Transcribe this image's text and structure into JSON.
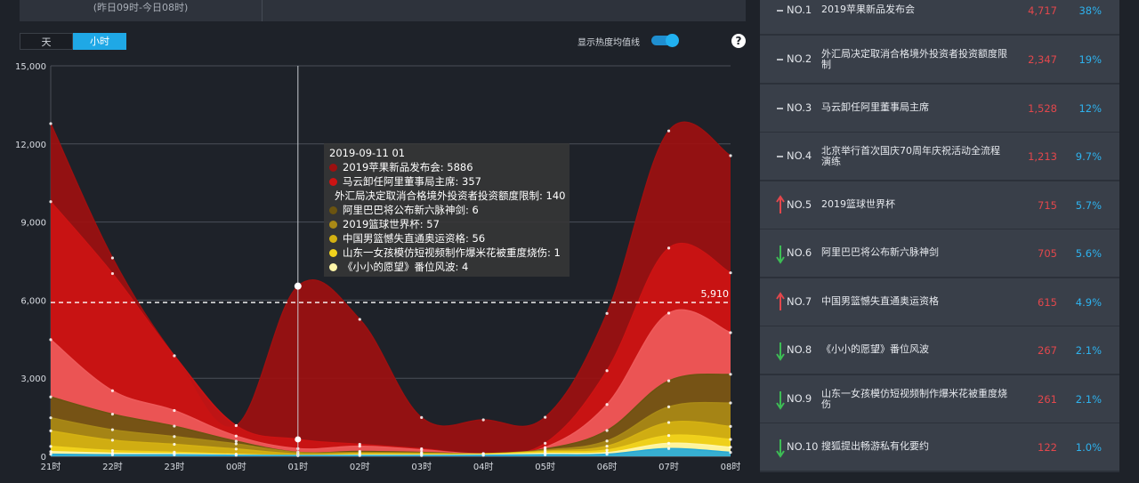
{
  "top_tab": {
    "sub_label": "(昨日09时-今日08时)"
  },
  "toggle": {
    "day_label": "天",
    "hour_label": "小时"
  },
  "heat_line": {
    "label": "显示热度均值线",
    "enabled": true
  },
  "help_icon": "?",
  "chart_data": {
    "type": "area",
    "x": [
      "21时",
      "22时",
      "23时",
      "00时",
      "01时",
      "02时",
      "03时",
      "04时",
      "05时",
      "06时",
      "07时",
      "08时"
    ],
    "yticks": [
      "0",
      "3,000",
      "6,000",
      "9,000",
      "12,000",
      "15,000"
    ],
    "ylim": [
      0,
      15000
    ],
    "grid": true,
    "stacked": true,
    "average_line": {
      "value": 5910,
      "label": "5,910"
    },
    "hover_x": "01时",
    "series": [
      {
        "name": "2019苹果新品发布会",
        "color": "#9d1010",
        "values": [
          3000,
          600,
          0,
          0,
          5886,
          4800,
          1200,
          1300,
          1000,
          2200,
          4500,
          4500
        ]
      },
      {
        "name": "马云卸任阿里董事局主席",
        "color": "#cc1313",
        "values": [
          5300,
          4500,
          2100,
          400,
          357,
          70,
          40,
          0,
          160,
          1300,
          2500,
          2300
        ]
      },
      {
        "name": "外汇局决定取消合格境外投资者投资额度限制",
        "color": "#ee5a5a",
        "values": [
          2200,
          900,
          600,
          200,
          140,
          200,
          100,
          0,
          60,
          1000,
          2600,
          1600
        ]
      },
      {
        "name": "阿里巴巴将公布新六脉神剑",
        "color": "#6b5410",
        "values": [
          800,
          600,
          400,
          100,
          6,
          40,
          20,
          0,
          40,
          400,
          1000,
          1100
        ]
      },
      {
        "name": "2019篮球世界杯",
        "color": "#a98916",
        "values": [
          500,
          400,
          300,
          200,
          57,
          40,
          30,
          10,
          40,
          200,
          600,
          900
        ]
      },
      {
        "name": "中国男篮憾失直通奥运资格",
        "color": "#d4b112",
        "values": [
          600,
          400,
          300,
          200,
          56,
          40,
          30,
          10,
          30,
          150,
          500,
          500
        ]
      },
      {
        "name": "山东一女孩模仿短视频制作爆米花被重度烧伤",
        "color": "#f1d21c",
        "values": [
          200,
          100,
          60,
          20,
          1,
          20,
          20,
          20,
          60,
          100,
          300,
          300
        ]
      },
      {
        "name": "《小小的愿望》番位风波",
        "color": "#fff6a8",
        "values": [
          100,
          60,
          40,
          20,
          4,
          20,
          20,
          20,
          50,
          60,
          200,
          200
        ]
      },
      {
        "name": "",
        "color": "#26a8d6",
        "values": [
          80,
          60,
          60,
          40,
          30,
          30,
          30,
          40,
          60,
          80,
          300,
          150
        ]
      }
    ]
  },
  "tooltip": {
    "title": "2019-09-11 01",
    "items": [
      {
        "text": "2019苹果新品发布会: 5886",
        "color": "#9d1010"
      },
      {
        "text": "马云卸任阿里董事局主席: 357",
        "color": "#cc1313"
      },
      {
        "text": "外汇局决定取消合格境外投资者投资额度限制: 140",
        "color": "#ee5a5a"
      },
      {
        "text": "阿里巴巴将公布新六脉神剑: 6",
        "color": "#6b5410"
      },
      {
        "text": "2019篮球世界杯: 57",
        "color": "#a98916"
      },
      {
        "text": "中国男篮憾失直通奥运资格: 56",
        "color": "#d4b112"
      },
      {
        "text": "山东一女孩模仿短视频制作爆米花被重度烧伤: 1",
        "color": "#f1d21c"
      },
      {
        "text": "《小小的愿望》番位风波: 4",
        "color": "#fff6a8"
      }
    ]
  },
  "ranking": [
    {
      "rank": "NO.1",
      "name": "2019苹果新品发布会",
      "count": "4,717",
      "pct": "38%",
      "trend": "flat"
    },
    {
      "rank": "NO.2",
      "name": "外汇局决定取消合格境外投资者投资额度限制",
      "count": "2,347",
      "pct": "19%",
      "trend": "flat"
    },
    {
      "rank": "NO.3",
      "name": "马云卸任阿里董事局主席",
      "count": "1,528",
      "pct": "12%",
      "trend": "flat"
    },
    {
      "rank": "NO.4",
      "name": "北京举行首次国庆70周年庆祝活动全流程演练",
      "count": "1,213",
      "pct": "9.7%",
      "trend": "flat"
    },
    {
      "rank": "NO.5",
      "name": "2019篮球世界杯",
      "count": "715",
      "pct": "5.7%",
      "trend": "up"
    },
    {
      "rank": "NO.6",
      "name": "阿里巴巴将公布新六脉神剑",
      "count": "705",
      "pct": "5.6%",
      "trend": "down"
    },
    {
      "rank": "NO.7",
      "name": "中国男篮憾失直通奥运资格",
      "count": "615",
      "pct": "4.9%",
      "trend": "up"
    },
    {
      "rank": "NO.8",
      "name": "《小小的愿望》番位风波",
      "count": "267",
      "pct": "2.1%",
      "trend": "down"
    },
    {
      "rank": "NO.9",
      "name": "山东一女孩模仿短视频制作爆米花被重度烧伤",
      "count": "261",
      "pct": "2.1%",
      "trend": "down"
    },
    {
      "rank": "NO.10",
      "name": "搜狐提出畅游私有化要约",
      "count": "122",
      "pct": "1.0%",
      "trend": "down"
    }
  ]
}
